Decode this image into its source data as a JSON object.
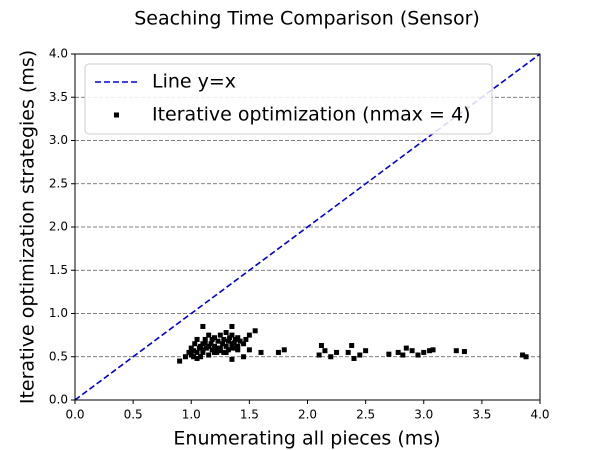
{
  "chart_data": {
    "type": "scatter",
    "title": "Seaching Time Comparison (Sensor)",
    "x_label": "Enumerating all pieces (ms)",
    "y_label": "Iterative optimization strategies (ms)",
    "xlim": [
      0,
      4
    ],
    "ylim": [
      0,
      4
    ],
    "xticks": [
      {
        "value": 0,
        "label": "0.0"
      },
      {
        "value": 0.5,
        "label": "0.5"
      },
      {
        "value": 1,
        "label": "1.0"
      },
      {
        "value": 1.5,
        "label": "1.5"
      },
      {
        "value": 2,
        "label": "2.0"
      },
      {
        "value": 2.5,
        "label": "2.5"
      },
      {
        "value": 3,
        "label": "3.0"
      },
      {
        "value": 3.5,
        "label": "3.5"
      },
      {
        "value": 4,
        "label": "4.0"
      }
    ],
    "yticks": [
      {
        "value": 0,
        "label": "0.0"
      },
      {
        "value": 0.5,
        "label": "0.5"
      },
      {
        "value": 1,
        "label": "1.0"
      },
      {
        "value": 1.5,
        "label": "1.5"
      },
      {
        "value": 2,
        "label": "2.0"
      },
      {
        "value": 2.5,
        "label": "2.5"
      },
      {
        "value": 3,
        "label": "3.0"
      },
      {
        "value": 3.5,
        "label": "3.5"
      },
      {
        "value": 4,
        "label": "4.0"
      }
    ],
    "grid": "y",
    "legend": "upper left",
    "series": [
      {
        "name": "Line y=x",
        "kind": "line",
        "color": "#0000dd",
        "x": [
          0,
          4
        ],
        "values": [
          0,
          4
        ]
      },
      {
        "name": "Iterative optimization (nmax = 4)",
        "kind": "scatter",
        "color": "#000000",
        "x": [
          0.9,
          0.95,
          0.98,
          1.0,
          1.02,
          1.03,
          1.05,
          1.05,
          1.07,
          1.08,
          1.1,
          1.1,
          1.12,
          1.13,
          1.15,
          1.15,
          1.17,
          1.18,
          1.2,
          1.2,
          1.22,
          1.23,
          1.25,
          1.25,
          1.27,
          1.28,
          1.3,
          1.3,
          1.32,
          1.33,
          1.35,
          1.35,
          1.37,
          1.38,
          1.4,
          1.4,
          1.42,
          1.45,
          1.47,
          1.5,
          1.0,
          1.05,
          1.1,
          1.15,
          1.2,
          1.25,
          1.3,
          1.35,
          1.4,
          1.12,
          1.22,
          1.32,
          1.02,
          1.08,
          1.18,
          1.28,
          1.38,
          1.1,
          1.35,
          1.55,
          1.5,
          1.45,
          1.35,
          1.6,
          1.75,
          1.8,
          2.1,
          2.12,
          2.15,
          2.2,
          2.25,
          2.35,
          2.38,
          2.4,
          2.45,
          2.5,
          2.7,
          2.78,
          2.82,
          2.85,
          2.9,
          2.95,
          3.0,
          3.05,
          3.08,
          3.28,
          3.35,
          3.85,
          3.88
        ],
        "values": [
          0.45,
          0.5,
          0.55,
          0.6,
          0.5,
          0.65,
          0.55,
          0.7,
          0.6,
          0.5,
          0.65,
          0.55,
          0.7,
          0.6,
          0.75,
          0.52,
          0.65,
          0.58,
          0.72,
          0.62,
          0.55,
          0.68,
          0.75,
          0.6,
          0.65,
          0.7,
          0.78,
          0.62,
          0.68,
          0.72,
          0.75,
          0.6,
          0.66,
          0.7,
          0.72,
          0.62,
          0.68,
          0.65,
          0.7,
          0.75,
          0.52,
          0.48,
          0.58,
          0.62,
          0.55,
          0.57,
          0.55,
          0.65,
          0.58,
          0.66,
          0.6,
          0.58,
          0.57,
          0.62,
          0.7,
          0.55,
          0.6,
          0.85,
          0.85,
          0.8,
          0.58,
          0.5,
          0.47,
          0.55,
          0.55,
          0.58,
          0.52,
          0.63,
          0.57,
          0.5,
          0.55,
          0.55,
          0.63,
          0.48,
          0.52,
          0.57,
          0.53,
          0.55,
          0.52,
          0.6,
          0.57,
          0.52,
          0.55,
          0.57,
          0.58,
          0.57,
          0.56,
          0.52,
          0.5
        ]
      }
    ]
  }
}
